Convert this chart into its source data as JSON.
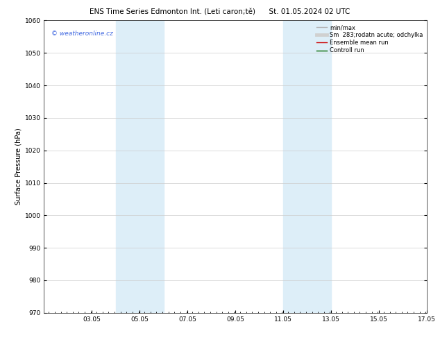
{
  "title_left": "ENS Time Series Edmonton Int. (Leti caron;tě)",
  "title_right": "St. 01.05.2024 02 UTC",
  "ylabel": "Surface Pressure (hPa)",
  "ylim": [
    970,
    1060
  ],
  "yticks": [
    970,
    980,
    990,
    1000,
    1010,
    1020,
    1030,
    1040,
    1050,
    1060
  ],
  "xlim_start": 1.05,
  "xlim_end": 17.05,
  "xticks": [
    3.05,
    5.05,
    7.05,
    9.05,
    11.05,
    13.05,
    15.05,
    17.05
  ],
  "xticklabels": [
    "03.05",
    "05.05",
    "07.05",
    "09.05",
    "11.05",
    "13.05",
    "15.05",
    "17.05"
  ],
  "shaded_regions": [
    {
      "xmin": 4.05,
      "xmax": 6.05
    },
    {
      "xmin": 11.05,
      "xmax": 13.05
    }
  ],
  "shade_color": "#ddeef8",
  "watermark_text": "© weatheronline.cz",
  "watermark_color": "#4169E1",
  "legend_entries": [
    {
      "label": "min/max",
      "color": "#b0b0b0",
      "lw": 1.0,
      "ls": "-"
    },
    {
      "label": "Sm  283;rodatn acute; odchylka",
      "color": "#d0d0d0",
      "lw": 3.5,
      "ls": "-"
    },
    {
      "label": "Ensemble mean run",
      "color": "#cc0000",
      "lw": 1.0,
      "ls": "-"
    },
    {
      "label": "Controll run",
      "color": "#006600",
      "lw": 1.0,
      "ls": "-"
    }
  ],
  "bg_color": "#ffffff",
  "grid_color": "#cccccc",
  "title_fontsize": 7.5,
  "ylabel_fontsize": 7,
  "tick_fontsize": 6.5,
  "legend_fontsize": 6,
  "watermark_fontsize": 6.5
}
